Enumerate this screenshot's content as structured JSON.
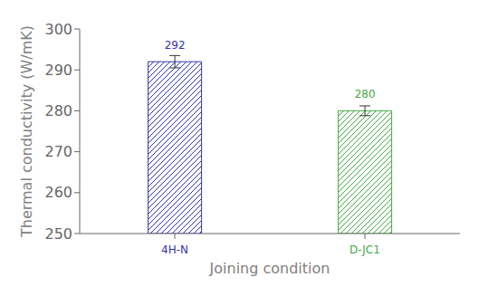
{
  "chart_data": {
    "type": "bar",
    "categories": [
      "4H-N",
      "D-JC1"
    ],
    "values": [
      292,
      280
    ],
    "errors": [
      1.5,
      1.2
    ],
    "colors": [
      "#3333aa",
      "#44aa44"
    ],
    "xlabel": "Joining condition",
    "ylabel": "Thermal conductivity (W/mK)",
    "ylim": [
      250,
      300
    ],
    "yticks": [
      250,
      260,
      270,
      280,
      290,
      300
    ],
    "data_labels": true,
    "grid": false
  }
}
